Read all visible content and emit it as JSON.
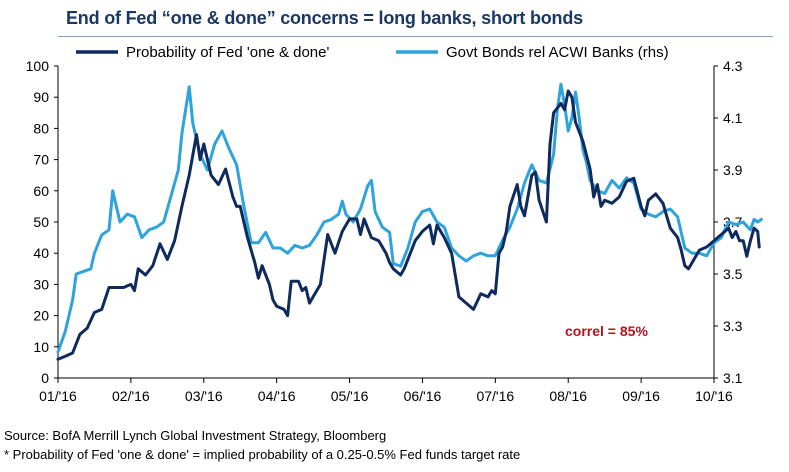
{
  "chart_data": {
    "type": "line",
    "title": "End of Fed “one & done” concerns = long banks, short bonds",
    "annotation": "correl = 85%",
    "x_tick_labels": [
      "01/'16",
      "02/'16",
      "03/'16",
      "04/'16",
      "05/'16",
      "06/'16",
      "07/'16",
      "08/'16",
      "09/'16",
      "10/'16"
    ],
    "y_left": {
      "min": 0,
      "max": 100,
      "ticks": [
        "0",
        "10",
        "20",
        "30",
        "40",
        "50",
        "60",
        "70",
        "80",
        "90",
        "100"
      ]
    },
    "y_right": {
      "min": 3.1,
      "max": 4.3,
      "ticks": [
        "3.1",
        "3.3",
        "3.5",
        "3.7",
        "3.9",
        "4.1",
        "4.3"
      ]
    },
    "series": [
      {
        "name": "Probability of Fed 'one & done'",
        "axis": "left",
        "color": "#0f2a5c",
        "points": [
          [
            0.0,
            6
          ],
          [
            0.1,
            7
          ],
          [
            0.2,
            8
          ],
          [
            0.3,
            14
          ],
          [
            0.4,
            16
          ],
          [
            0.5,
            21
          ],
          [
            0.6,
            22
          ],
          [
            0.7,
            29
          ],
          [
            0.8,
            29
          ],
          [
            0.9,
            29
          ],
          [
            1.0,
            30
          ],
          [
            1.05,
            28
          ],
          [
            1.1,
            35
          ],
          [
            1.2,
            33
          ],
          [
            1.3,
            36
          ],
          [
            1.4,
            43
          ],
          [
            1.5,
            38
          ],
          [
            1.6,
            44
          ],
          [
            1.7,
            55
          ],
          [
            1.8,
            65
          ],
          [
            1.9,
            78
          ],
          [
            1.95,
            70
          ],
          [
            2.0,
            75
          ],
          [
            2.1,
            65
          ],
          [
            2.2,
            62
          ],
          [
            2.3,
            67
          ],
          [
            2.4,
            58
          ],
          [
            2.45,
            55
          ],
          [
            2.5,
            55
          ],
          [
            2.6,
            45
          ],
          [
            2.7,
            37
          ],
          [
            2.75,
            32
          ],
          [
            2.8,
            36
          ],
          [
            2.9,
            30
          ],
          [
            2.95,
            25
          ],
          [
            3.0,
            23
          ],
          [
            3.1,
            22
          ],
          [
            3.15,
            20
          ],
          [
            3.2,
            31
          ],
          [
            3.3,
            31
          ],
          [
            3.35,
            28
          ],
          [
            3.4,
            29
          ],
          [
            3.45,
            24
          ],
          [
            3.5,
            26
          ],
          [
            3.6,
            30
          ],
          [
            3.7,
            46
          ],
          [
            3.8,
            40
          ],
          [
            3.9,
            47
          ],
          [
            4.0,
            51
          ],
          [
            4.1,
            51
          ],
          [
            4.15,
            46
          ],
          [
            4.2,
            51
          ],
          [
            4.3,
            45
          ],
          [
            4.4,
            44
          ],
          [
            4.5,
            40
          ],
          [
            4.55,
            37
          ],
          [
            4.6,
            35
          ],
          [
            4.7,
            33
          ],
          [
            4.75,
            35
          ],
          [
            4.8,
            38
          ],
          [
            4.9,
            44
          ],
          [
            5.0,
            47
          ],
          [
            5.1,
            49
          ],
          [
            5.15,
            43
          ],
          [
            5.2,
            49
          ],
          [
            5.3,
            45
          ],
          [
            5.4,
            40
          ],
          [
            5.5,
            26
          ],
          [
            5.6,
            24
          ],
          [
            5.7,
            22
          ],
          [
            5.8,
            27
          ],
          [
            5.9,
            26
          ],
          [
            5.95,
            28
          ],
          [
            6.0,
            27
          ],
          [
            6.05,
            40
          ],
          [
            6.1,
            42
          ],
          [
            6.15,
            47
          ],
          [
            6.2,
            55
          ],
          [
            6.3,
            62
          ],
          [
            6.35,
            55
          ],
          [
            6.4,
            52
          ],
          [
            6.5,
            65
          ],
          [
            6.55,
            66
          ],
          [
            6.6,
            57
          ],
          [
            6.7,
            50
          ],
          [
            6.75,
            75
          ],
          [
            6.8,
            85
          ],
          [
            6.9,
            88
          ],
          [
            6.95,
            86
          ],
          [
            7.0,
            92
          ],
          [
            7.05,
            90
          ],
          [
            7.1,
            82
          ],
          [
            7.2,
            76
          ],
          [
            7.3,
            67
          ],
          [
            7.35,
            58
          ],
          [
            7.4,
            62
          ],
          [
            7.45,
            55
          ],
          [
            7.5,
            57
          ],
          [
            7.6,
            56
          ],
          [
            7.7,
            58
          ],
          [
            7.8,
            63
          ],
          [
            7.9,
            64
          ],
          [
            8.0,
            55
          ],
          [
            8.05,
            52
          ],
          [
            8.1,
            57
          ],
          [
            8.2,
            59
          ],
          [
            8.3,
            56
          ],
          [
            8.35,
            52
          ],
          [
            8.4,
            48
          ],
          [
            8.5,
            45
          ],
          [
            8.55,
            41
          ],
          [
            8.6,
            36
          ],
          [
            8.65,
            35
          ],
          [
            8.7,
            37
          ],
          [
            8.8,
            41
          ],
          [
            8.9,
            42
          ],
          [
            9.0,
            44
          ],
          [
            9.1,
            46
          ],
          [
            9.2,
            48
          ],
          [
            9.25,
            45
          ],
          [
            9.3,
            47
          ],
          [
            9.35,
            44
          ],
          [
            9.4,
            44
          ],
          [
            9.45,
            39
          ],
          [
            9.5,
            44
          ],
          [
            9.55,
            48
          ],
          [
            9.6,
            47
          ],
          [
            9.62,
            42
          ]
        ]
      },
      {
        "name": "Govt Bonds rel ACWI Banks (rhs)",
        "axis": "right",
        "color": "#2ea3dc",
        "points": [
          [
            0.0,
            3.2
          ],
          [
            0.1,
            3.28
          ],
          [
            0.2,
            3.4
          ],
          [
            0.25,
            3.5
          ],
          [
            0.35,
            3.51
          ],
          [
            0.45,
            3.52
          ],
          [
            0.5,
            3.58
          ],
          [
            0.6,
            3.65
          ],
          [
            0.7,
            3.67
          ],
          [
            0.75,
            3.82
          ],
          [
            0.85,
            3.7
          ],
          [
            0.95,
            3.73
          ],
          [
            1.05,
            3.72
          ],
          [
            1.15,
            3.64
          ],
          [
            1.25,
            3.67
          ],
          [
            1.35,
            3.68
          ],
          [
            1.45,
            3.7
          ],
          [
            1.55,
            3.8
          ],
          [
            1.65,
            3.9
          ],
          [
            1.7,
            4.04
          ],
          [
            1.8,
            4.22
          ],
          [
            1.85,
            4.08
          ],
          [
            1.95,
            3.96
          ],
          [
            2.05,
            3.9
          ],
          [
            2.15,
            4.0
          ],
          [
            2.25,
            4.05
          ],
          [
            2.35,
            3.98
          ],
          [
            2.45,
            3.92
          ],
          [
            2.55,
            3.76
          ],
          [
            2.65,
            3.62
          ],
          [
            2.75,
            3.62
          ],
          [
            2.85,
            3.66
          ],
          [
            2.95,
            3.6
          ],
          [
            3.05,
            3.6
          ],
          [
            3.15,
            3.58
          ],
          [
            3.25,
            3.61
          ],
          [
            3.35,
            3.6
          ],
          [
            3.45,
            3.61
          ],
          [
            3.55,
            3.65
          ],
          [
            3.65,
            3.7
          ],
          [
            3.75,
            3.71
          ],
          [
            3.85,
            3.73
          ],
          [
            3.9,
            3.78
          ],
          [
            3.95,
            3.73
          ],
          [
            4.05,
            3.7
          ],
          [
            4.15,
            3.75
          ],
          [
            4.25,
            3.84
          ],
          [
            4.3,
            3.86
          ],
          [
            4.35,
            3.74
          ],
          [
            4.45,
            3.68
          ],
          [
            4.55,
            3.66
          ],
          [
            4.6,
            3.54
          ],
          [
            4.7,
            3.53
          ],
          [
            4.8,
            3.6
          ],
          [
            4.9,
            3.7
          ],
          [
            5.0,
            3.74
          ],
          [
            5.1,
            3.75
          ],
          [
            5.2,
            3.7
          ],
          [
            5.3,
            3.68
          ],
          [
            5.4,
            3.6
          ],
          [
            5.5,
            3.57
          ],
          [
            5.6,
            3.55
          ],
          [
            5.7,
            3.57
          ],
          [
            5.8,
            3.58
          ],
          [
            5.9,
            3.57
          ],
          [
            6.0,
            3.57
          ],
          [
            6.1,
            3.63
          ],
          [
            6.2,
            3.68
          ],
          [
            6.3,
            3.75
          ],
          [
            6.4,
            3.85
          ],
          [
            6.5,
            3.92
          ],
          [
            6.6,
            3.86
          ],
          [
            6.7,
            3.85
          ],
          [
            6.8,
            3.96
          ],
          [
            6.85,
            4.13
          ],
          [
            6.9,
            4.23
          ],
          [
            6.95,
            4.15
          ],
          [
            7.0,
            4.05
          ],
          [
            7.05,
            4.1
          ],
          [
            7.1,
            4.2
          ],
          [
            7.15,
            4.1
          ],
          [
            7.2,
            3.98
          ],
          [
            7.25,
            3.93
          ],
          [
            7.3,
            3.86
          ],
          [
            7.4,
            3.82
          ],
          [
            7.5,
            3.81
          ],
          [
            7.6,
            3.86
          ],
          [
            7.7,
            3.83
          ],
          [
            7.8,
            3.87
          ],
          [
            7.9,
            3.85
          ],
          [
            8.0,
            3.75
          ],
          [
            8.1,
            3.73
          ],
          [
            8.2,
            3.72
          ],
          [
            8.3,
            3.74
          ],
          [
            8.4,
            3.75
          ],
          [
            8.5,
            3.72
          ],
          [
            8.6,
            3.6
          ],
          [
            8.7,
            3.58
          ],
          [
            8.8,
            3.58
          ],
          [
            8.9,
            3.57
          ],
          [
            9.0,
            3.62
          ],
          [
            9.1,
            3.64
          ],
          [
            9.15,
            3.67
          ],
          [
            9.2,
            3.7
          ],
          [
            9.3,
            3.69
          ],
          [
            9.4,
            3.7
          ],
          [
            9.5,
            3.67
          ],
          [
            9.55,
            3.71
          ],
          [
            9.6,
            3.7
          ],
          [
            9.65,
            3.71
          ]
        ]
      }
    ]
  },
  "footer": {
    "source": "Source: BofA Merrill Lynch Global Investment Strategy, Bloomberg",
    "note": "* Probability of Fed 'one & done' = implied probability of a 0.25-0.5% Fed funds target rate"
  }
}
